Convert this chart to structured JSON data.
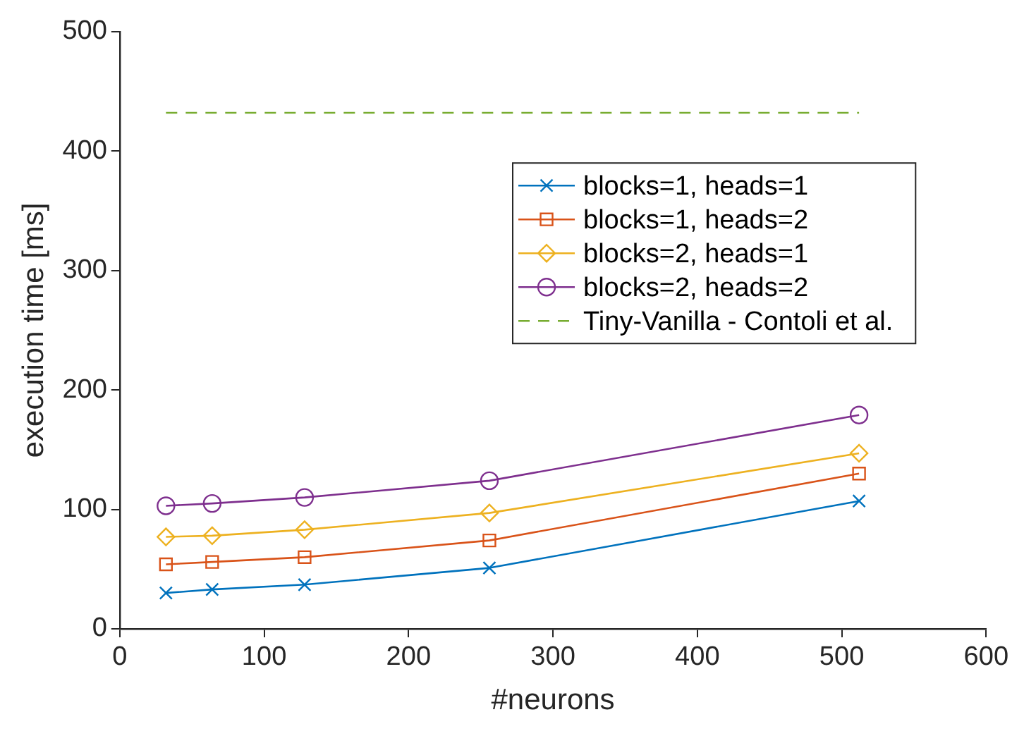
{
  "chart_data": {
    "type": "line",
    "xlabel": "#neurons",
    "ylabel": "execution time [ms]",
    "xlim": [
      0,
      600
    ],
    "xticks": [
      0,
      100,
      200,
      300,
      400,
      500,
      600
    ],
    "ylim": [
      0,
      500
    ],
    "yticks": [
      0,
      100,
      200,
      300,
      400,
      500
    ],
    "grid": false,
    "legend": "right",
    "x": [
      32,
      64,
      128,
      256,
      512
    ],
    "series": [
      {
        "name": "blocks=1, heads=1",
        "color": "#0072bd",
        "marker": "cross",
        "values": [
          30,
          33,
          37,
          51,
          107
        ]
      },
      {
        "name": "blocks=1, heads=2",
        "color": "#d95319",
        "marker": "square",
        "values": [
          54,
          56,
          60,
          74,
          130
        ]
      },
      {
        "name": "blocks=2, heads=1",
        "color": "#edb120",
        "marker": "diamond",
        "values": [
          77,
          78,
          83,
          97,
          147
        ]
      },
      {
        "name": "blocks=2, heads=2",
        "color": "#7e2f8e",
        "marker": "circle",
        "values": [
          103,
          105,
          110,
          124,
          179
        ]
      },
      {
        "name": "Tiny-Vanilla - Contoli et al.",
        "color": "#77ac30",
        "marker": "none",
        "line_style": "dashed",
        "x": [
          32,
          512
        ],
        "values": [
          432,
          432
        ]
      }
    ]
  }
}
